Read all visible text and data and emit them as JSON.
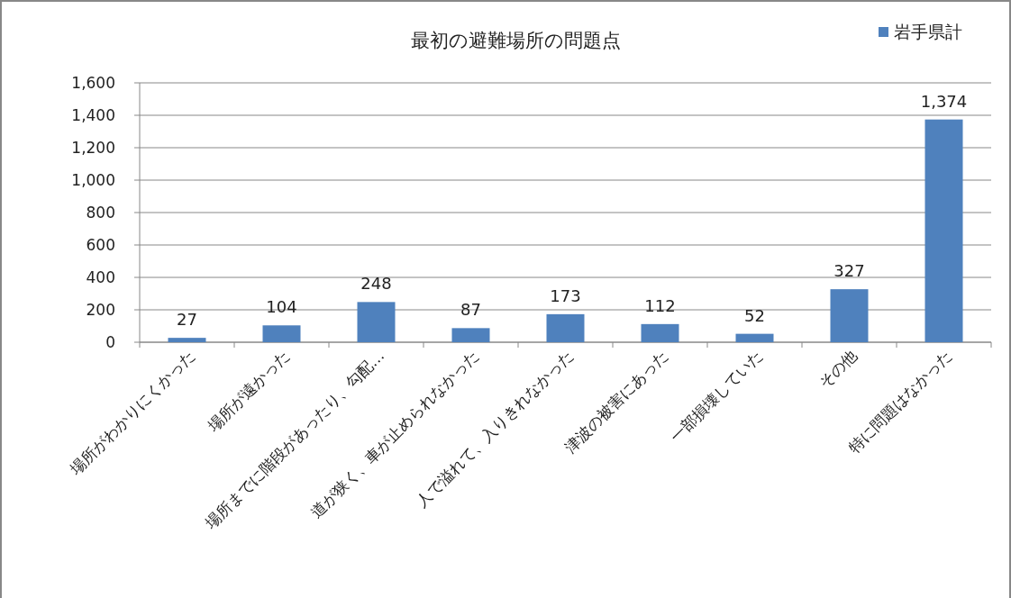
{
  "chart_data": {
    "type": "bar",
    "title": "最初の避難場所の問題点",
    "categories": [
      "場所がわかりにくかった",
      "場所が遠かった",
      "場所までに階段があったり、勾配…",
      "道が狭く、車が止められなかった",
      "人で溢れて、入りきれなかった",
      "津波の被害にあった",
      "一部損壊していた",
      "その他",
      "特に問題はなかった"
    ],
    "series": [
      {
        "name": "岩手県計",
        "color": "#4f81bd",
        "values": [
          27,
          104,
          248,
          87,
          173,
          112,
          52,
          327,
          1374
        ],
        "value_labels": [
          "27",
          "104",
          "248",
          "87",
          "173",
          "112",
          "52",
          "327",
          "1,374"
        ]
      }
    ],
    "ylim": [
      0,
      1600
    ],
    "yticks": [
      0,
      200,
      400,
      600,
      800,
      {
        "value": 1000,
        "label": "1,000"
      },
      {
        "value": 1200,
        "label": "1,200"
      },
      {
        "value": 1400,
        "label": "1,400"
      },
      {
        "value": 1600,
        "label": "1,600"
      }
    ],
    "grid": "y",
    "legend": "top right"
  }
}
